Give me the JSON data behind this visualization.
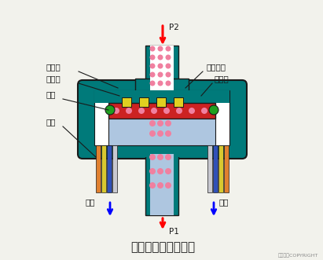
{
  "title": "扩散硅式压力传感器",
  "copyright": "东方仿真COPYRIGHT",
  "bg_color": "#f2f2ec",
  "labels": {
    "low_pressure": "低压腔",
    "high_pressure": "高压腔",
    "silicon_cup": "硅杯",
    "lead_wire": "引线",
    "diffuse_resistor": "扩散电阻",
    "silicon_membrane": "硅膜片",
    "current_left": "电流",
    "current_right": "电流",
    "P1": "P1",
    "P2": "P2"
  }
}
